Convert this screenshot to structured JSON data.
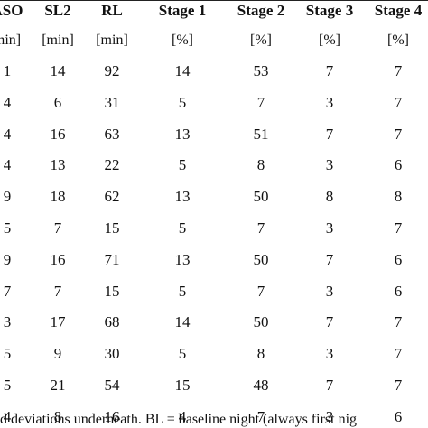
{
  "table": {
    "headers": [
      "ASO",
      "SL2",
      "RL",
      "Stage 1",
      "Stage 2",
      "Stage 3",
      "Stage 4"
    ],
    "units": [
      "min]",
      "[min]",
      "[min]",
      "[%]",
      "[%]",
      "[%]",
      "[%]"
    ],
    "rows": [
      [
        "1",
        "14",
        "92",
        "14",
        "53",
        "7",
        "7"
      ],
      [
        "4",
        "6",
        "31",
        "5",
        "7",
        "3",
        "7"
      ],
      [
        "4",
        "16",
        "63",
        "13",
        "51",
        "7",
        "7"
      ],
      [
        "4",
        "13",
        "22",
        "5",
        "8",
        "3",
        "6"
      ],
      [
        "9",
        "18",
        "62",
        "13",
        "50",
        "8",
        "8"
      ],
      [
        "5",
        "7",
        "15",
        "5",
        "7",
        "3",
        "7"
      ],
      [
        "9",
        "16",
        "71",
        "13",
        "50",
        "7",
        "6"
      ],
      [
        "7",
        "7",
        "15",
        "5",
        "7",
        "3",
        "6"
      ],
      [
        "3",
        "17",
        "68",
        "14",
        "50",
        "7",
        "7"
      ],
      [
        "5",
        "9",
        "30",
        "5",
        "8",
        "3",
        "7"
      ],
      [
        "5",
        "21",
        "54",
        "15",
        "48",
        "7",
        "7"
      ],
      [
        "4",
        "8",
        "16",
        "4",
        "7",
        "3",
        "6"
      ]
    ]
  },
  "footnote": "d deviations underneath. BL = baseline night (always first nig"
}
